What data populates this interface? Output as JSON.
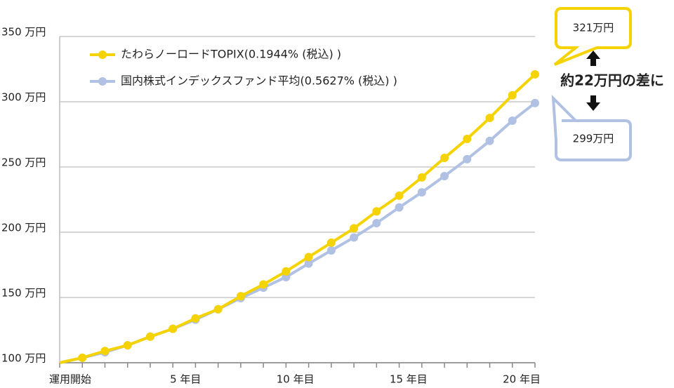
{
  "chart_data": {
    "type": "line",
    "categories": [
      "運用開始",
      null,
      null,
      null,
      null,
      null,
      "5 年目",
      null,
      null,
      null,
      null,
      "10 年目",
      null,
      null,
      null,
      null,
      "15 年目",
      null,
      null,
      null,
      null,
      "20 年目"
    ],
    "series": [
      {
        "name": "たわらノーロードTOPIX(0.1944% (税込) )",
        "color": "#f5d300",
        "values": [
          100,
          103.8,
          109,
          113.4,
          120,
          126,
          134,
          141,
          151,
          160,
          170,
          181,
          192,
          203,
          216,
          228,
          242,
          257,
          271.5,
          287.6,
          305,
          321
        ]
      },
      {
        "name": "国内株式インデックスファンド平均(0.5627% (税込) )",
        "color": "#b1c1e3",
        "values": [
          100,
          103.8,
          108,
          113.4,
          120,
          126,
          133,
          141,
          149.5,
          157.5,
          165.6,
          176,
          186,
          196,
          207,
          219,
          230.6,
          243,
          256,
          270,
          285.5,
          299
        ]
      }
    ],
    "ylim": [
      100,
      350
    ],
    "yticks": [
      {
        "value": 100,
        "label": "100 万円"
      },
      {
        "value": 150,
        "label": "150 万円"
      },
      {
        "value": 200,
        "label": "200 万円"
      },
      {
        "value": 250,
        "label": "250 万円"
      },
      {
        "value": 300,
        "label": "300 万円"
      },
      {
        "value": 350,
        "label": "350 万円"
      }
    ],
    "grid": true,
    "legend": "upper left",
    "annotations": [
      "321万円",
      "299万円",
      "約22万円の差に"
    ]
  }
}
